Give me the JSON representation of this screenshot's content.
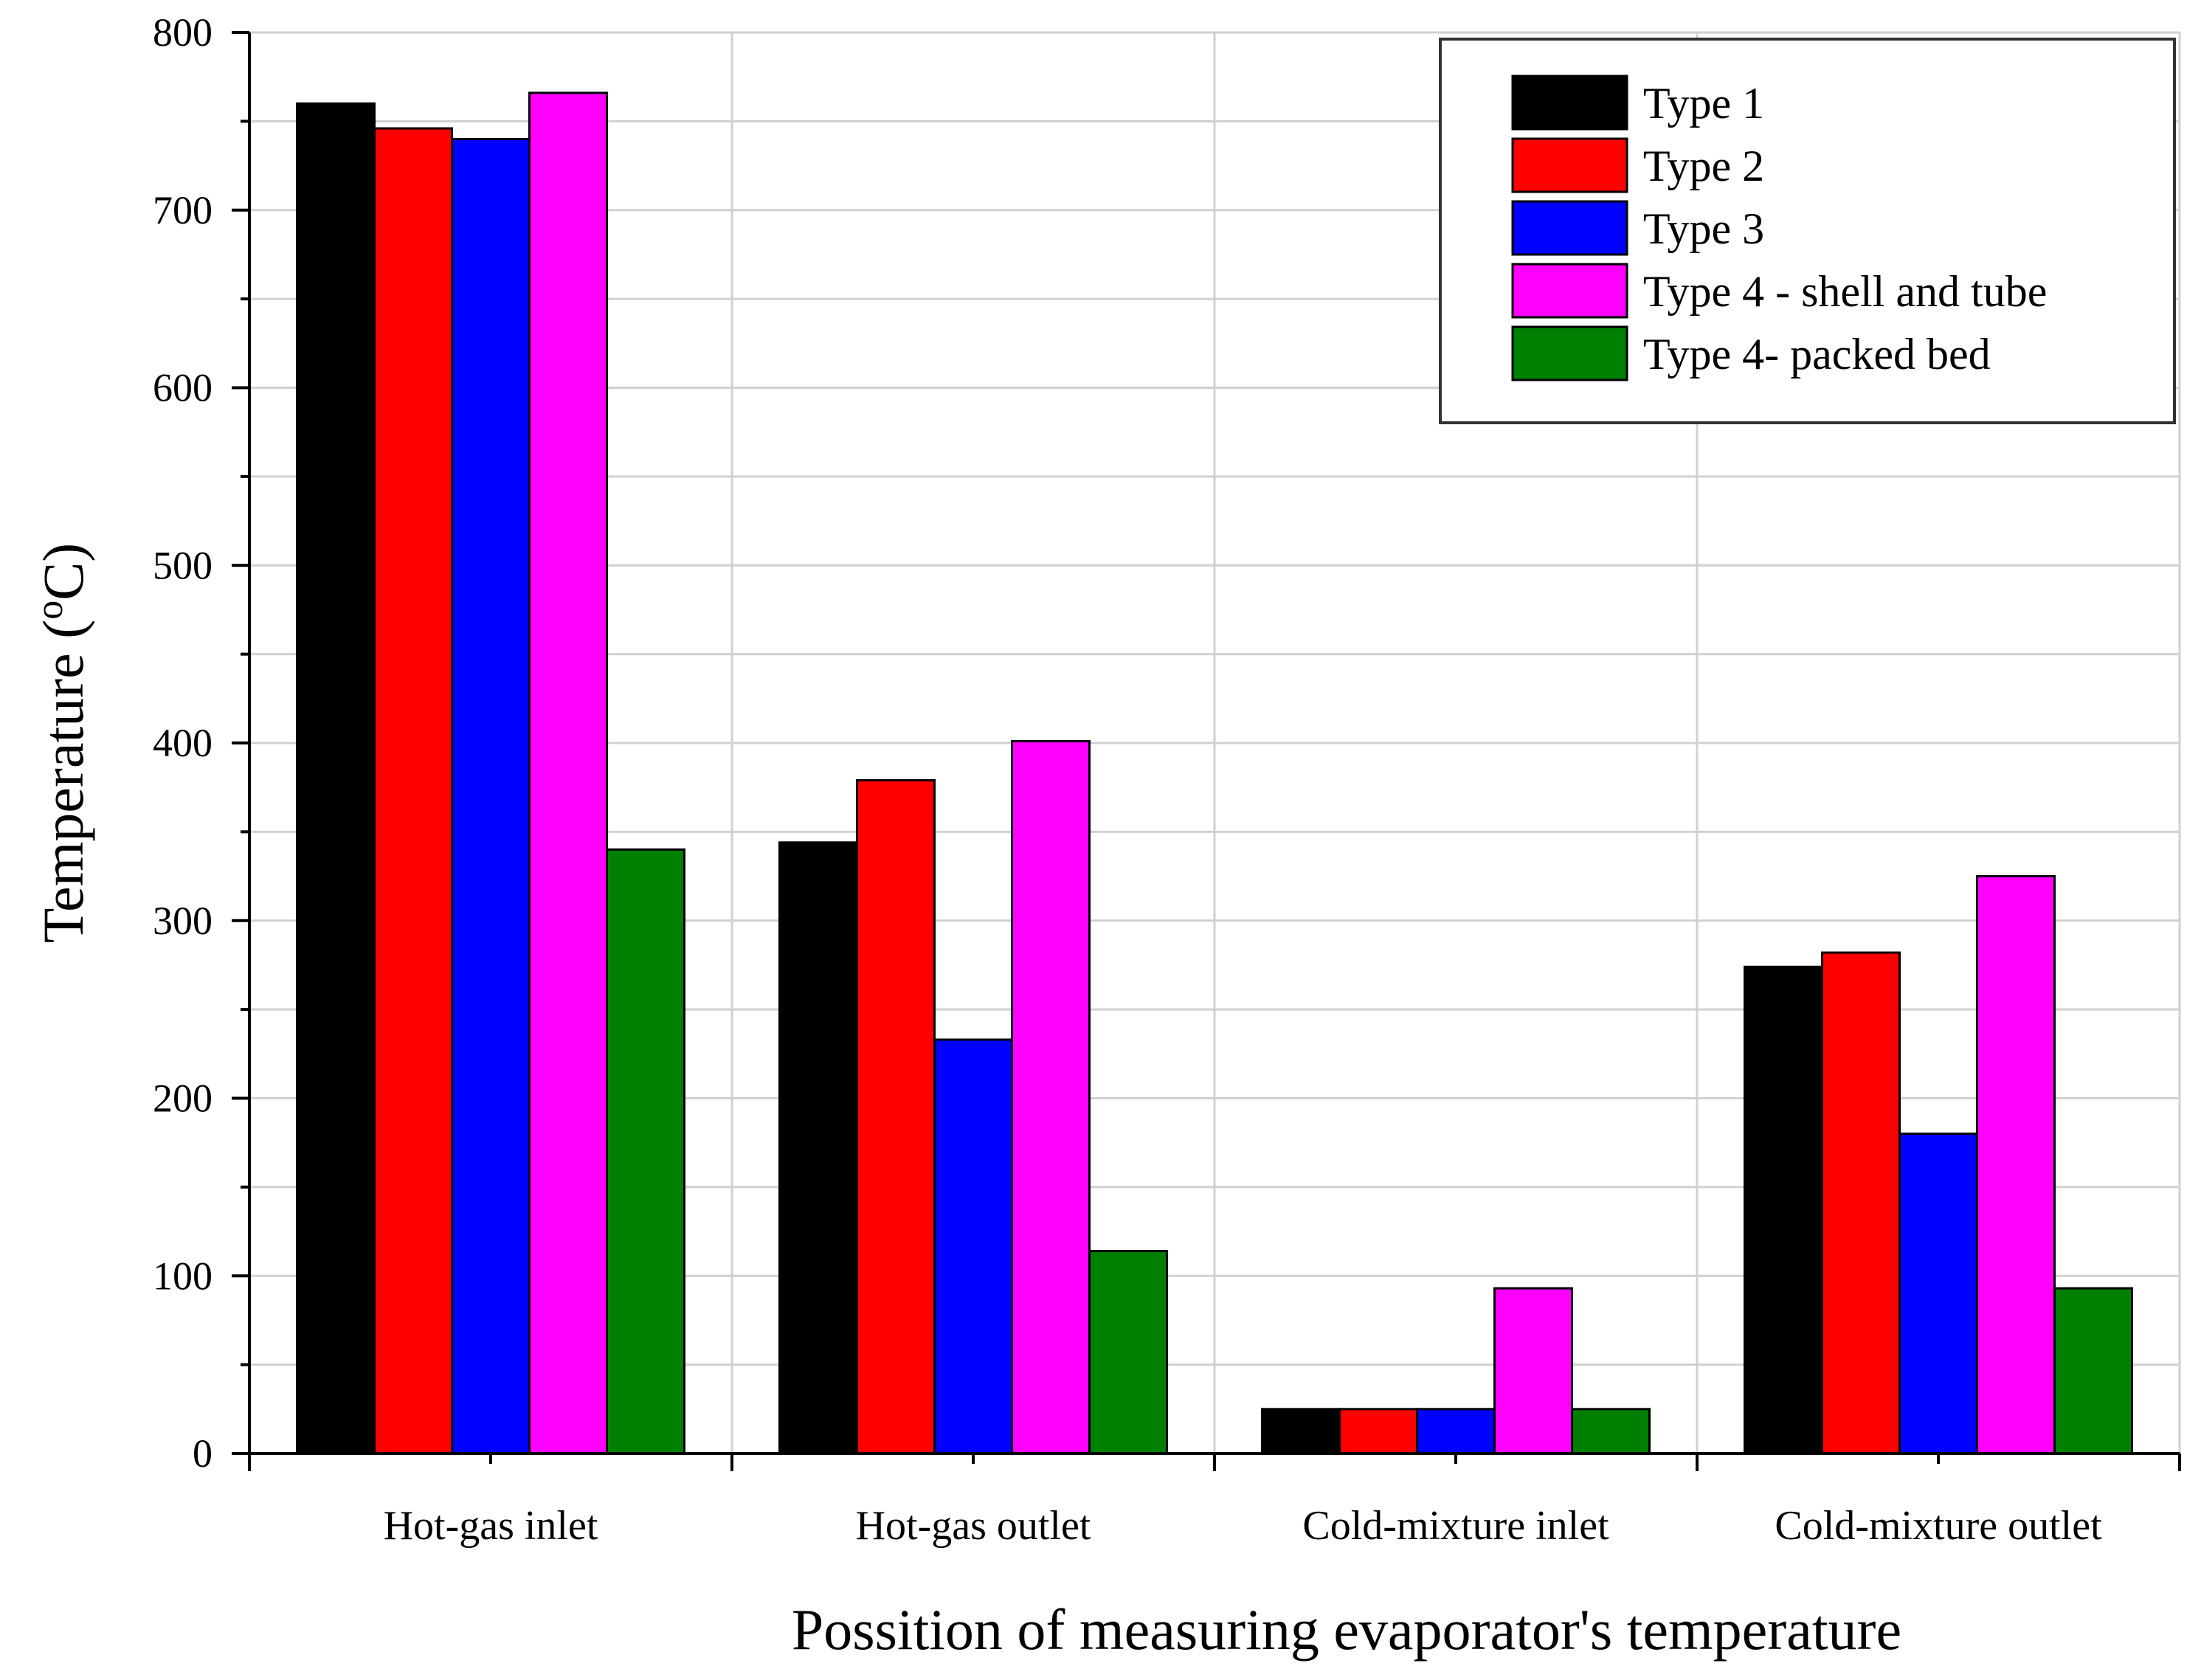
{
  "chart_data": {
    "type": "bar",
    "title": "",
    "xlabel": "Possition of measuring evaporator's temperature",
    "ylabel": "Temperature",
    "ylabel_unit_sup": "o",
    "ylabel_unit": "C",
    "ylim": [
      0,
      800
    ],
    "yticks": [
      0,
      100,
      200,
      300,
      400,
      500,
      600,
      700,
      800
    ],
    "grid": true,
    "legend_position": "top-right",
    "categories": [
      "Hot-gas inlet",
      "Hot-gas outlet",
      "Cold-mixture inlet",
      "Cold-mixture outlet"
    ],
    "series": [
      {
        "name": "Type 1",
        "color": "#000000",
        "values": [
          760,
          344,
          25,
          274
        ]
      },
      {
        "name": "Type 2",
        "color": "#ff0000",
        "values": [
          746,
          379,
          25,
          282
        ]
      },
      {
        "name": "Type 3",
        "color": "#0000ff",
        "values": [
          740,
          233,
          25,
          180
        ]
      },
      {
        "name": "Type 4 - shell and tube",
        "color": "#ff00ff",
        "values": [
          766,
          401,
          93,
          325
        ]
      },
      {
        "name": "Type 4- packed bed",
        "color": "#008000",
        "values": [
          340,
          114,
          25,
          93
        ]
      }
    ]
  }
}
